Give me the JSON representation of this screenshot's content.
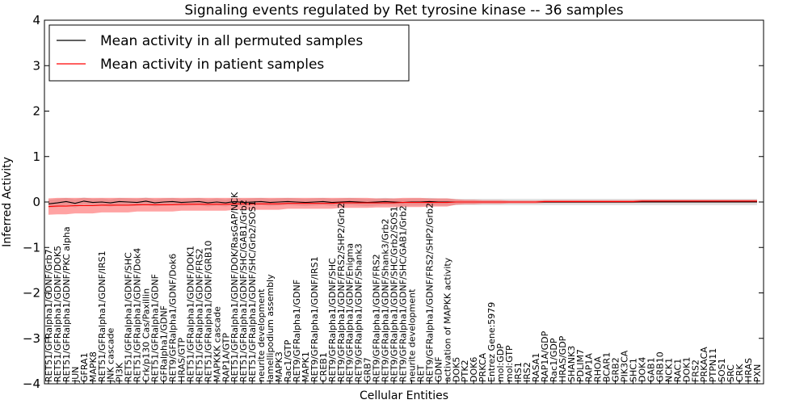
{
  "chart_data": {
    "type": "line",
    "title": "Signaling events regulated by Ret tyrosine kinase -- 36 samples",
    "xlabel": "Cellular Entities",
    "ylabel": "Inferred Activity",
    "ylim": [
      -4,
      4
    ],
    "yticks": [
      "−4",
      "−3",
      "−2",
      "−1",
      "0",
      "1",
      "2",
      "3",
      "4"
    ],
    "ytick_values": [
      -4,
      -3,
      -2,
      -1,
      0,
      1,
      2,
      3,
      4
    ],
    "grid": false,
    "legend": {
      "position": "top-left",
      "entries": [
        {
          "label": "Mean activity in all permuted samples",
          "color": "#000000"
        },
        {
          "label": "Mean activity in patient samples",
          "color": "#ff0000"
        }
      ]
    },
    "colors": {
      "permuted_line": "#000000",
      "patient_line": "#ff0000",
      "patient_band": "#ff3333",
      "permuted_band": "#bbbbbb"
    },
    "categories": [
      "RET51/GFRalpha1/GDNF/Grb7",
      "RET51/GFRalpha1/GDNF/DOK5",
      "RET51/GFRalpha1/GDNF/PKC alpha",
      "JUN",
      "GFRA1",
      "MAPK8",
      "RET51/GFRalpha1/GDNF/IRS1",
      "JNK cascade",
      "PI3K",
      "RET51/GFRalpha1/GDNF/SHC",
      "RET51/GFRalpha1/GDNF/Dok4",
      "Crk/p130 Cas/Paxillin",
      "RET51/GFRalpha1/GDNF",
      "GFRalpha1/GDNF",
      "RET9/GFRalpha1/GDNF/Dok6",
      "HRAS/GTP",
      "RET51/GFRalpha1/GDNF/DOK1",
      "RET51/GFRalpha1/GDNF/FRS2",
      "RET51/GFRalpha1/GDNF/GRB10",
      "MAPKKK cascade",
      "RAP1A/GTP",
      "RET51/GFRalpha1/GDNF/DOK/RasGAP/NCK",
      "RET51/GFRalpha1/GDNF/SHC/GAB1/Grb2",
      "RET51/GFRalpha1/GDNF/SHC/Grb2/SOS1",
      "neurite development",
      "lamellipodium assembly",
      "MAPK3",
      "Rac1/GTP",
      "RET9/GFRalpha1/GDNF",
      "MAPK1",
      "RET9/GFRalpha1/GDNF/IRS1",
      "CREB1",
      "RET9/GFRalpha1/GDNF/SHC",
      "RET9/GFRalpha1/GDNF/FRS2/SHP2/Grb2",
      "RET9/GFRalpha1/GDNF/Enigma",
      "RET9/GFRalpha1/GDNF/Shank3",
      "GRB7",
      "RET9/GFRalpha1/GDNF/FRS2",
      "RET9/GFRalpha1/GDNF/Shank3/Grb2",
      "RET9/GFRalpha1/GDNF/SHC/Grb2/SOS1",
      "RET9/GFRalpha1/GDNF/SHC/GAB1/Grb2",
      "neurite development",
      "RET",
      "RET9/GFRalpha1/GDNF/FRS2/SHP2/Grb2",
      "GDNF",
      "activation of MAPKK activity",
      "DOK5",
      "PTK2",
      "DOK6",
      "PRKCA",
      "Entrez Gene:5979",
      "mol:GDP",
      "mol:GTP",
      "IRS1",
      "IRS2",
      "RASA1",
      "RAP1A/GDP",
      "Rac1/GDP",
      "HRAS/GDP",
      "SHANK3",
      "PDLIM7",
      "RAP1A",
      "RHOA",
      "BCAR1",
      "GRB2",
      "PIK3CA",
      "SHC1",
      "DOK4",
      "GAB1",
      "GRB10",
      "NCK1",
      "RAC1",
      "DOK1",
      "FRS2",
      "PRKACA",
      "PTPN11",
      "SOS1",
      "SRC",
      "CRK",
      "HRAS",
      "PXN"
    ],
    "series": [
      {
        "name": "Mean activity in all permuted samples",
        "values": [
          -0.04,
          -0.02,
          0.01,
          -0.03,
          0.02,
          -0.01,
          0.0,
          -0.02,
          0.01,
          0.0,
          -0.01,
          0.02,
          -0.02,
          0.0,
          0.01,
          -0.01,
          0.0,
          0.01,
          -0.02,
          0.0,
          -0.02,
          0.01,
          -0.01,
          0.0,
          0.01,
          -0.01,
          0.0,
          0.01,
          0.0,
          -0.01,
          0.0,
          0.01,
          -0.01,
          0.0,
          0.01,
          0.0,
          -0.01,
          0.0,
          0.01,
          0.0,
          -0.01,
          0.0,
          0.0,
          0.01,
          0.0,
          0.0,
          0.0,
          0.0,
          0.0,
          0.0,
          0.0,
          0.0,
          0.0,
          0.0,
          0.0,
          0.0,
          0.0,
          0.0,
          0.0,
          0.0,
          0.0,
          0.0,
          0.0,
          0.0,
          0.0,
          0.0,
          0.0,
          0.0,
          0.0,
          0.0,
          0.0,
          0.0,
          0.0,
          0.0,
          0.0,
          0.0,
          0.0,
          0.0,
          0.0,
          0.0,
          0.0
        ],
        "band": [
          0.09,
          0.09,
          0.08,
          0.09,
          0.08,
          0.08,
          0.08,
          0.08,
          0.08,
          0.08,
          0.08,
          0.08,
          0.08,
          0.08,
          0.08,
          0.08,
          0.08,
          0.08,
          0.08,
          0.08,
          0.08,
          0.08,
          0.08,
          0.08,
          0.08,
          0.08,
          0.08,
          0.08,
          0.08,
          0.08,
          0.08,
          0.08,
          0.08,
          0.08,
          0.08,
          0.08,
          0.08,
          0.08,
          0.08,
          0.08,
          0.08,
          0.08,
          0.08,
          0.08,
          0.08,
          0.08,
          0.07,
          0.07,
          0.07,
          0.07,
          0.07,
          0.07,
          0.07,
          0.07,
          0.07,
          0.07,
          0.07,
          0.07,
          0.07,
          0.07,
          0.07,
          0.07,
          0.07,
          0.07,
          0.07,
          0.07,
          0.07,
          0.07,
          0.07,
          0.07,
          0.07,
          0.07,
          0.07,
          0.07,
          0.07,
          0.07,
          0.07,
          0.07,
          0.07,
          0.07,
          0.07
        ]
      },
      {
        "name": "Mean activity in patient samples",
        "values": [
          -0.1,
          -0.09,
          -0.09,
          -0.08,
          -0.08,
          -0.08,
          -0.07,
          -0.07,
          -0.07,
          -0.07,
          -0.06,
          -0.06,
          -0.06,
          -0.06,
          -0.06,
          -0.05,
          -0.05,
          -0.05,
          -0.05,
          -0.05,
          -0.05,
          -0.04,
          -0.04,
          -0.04,
          -0.04,
          -0.04,
          -0.04,
          -0.03,
          -0.03,
          -0.03,
          -0.03,
          -0.03,
          -0.03,
          -0.02,
          -0.02,
          -0.02,
          -0.02,
          -0.02,
          -0.02,
          -0.02,
          -0.01,
          -0.01,
          -0.01,
          -0.01,
          -0.01,
          -0.01,
          0.0,
          0.0,
          0.0,
          0.0,
          0.0,
          0.0,
          0.0,
          0.0,
          0.0,
          0.0,
          0.01,
          0.01,
          0.01,
          0.01,
          0.01,
          0.01,
          0.01,
          0.01,
          0.01,
          0.01,
          0.01,
          0.02,
          0.02,
          0.02,
          0.02,
          0.02,
          0.02,
          0.02,
          0.02,
          0.02,
          0.02,
          0.02,
          0.02,
          0.02,
          0.02
        ],
        "band": [
          0.18,
          0.18,
          0.18,
          0.17,
          0.17,
          0.17,
          0.16,
          0.16,
          0.16,
          0.16,
          0.15,
          0.15,
          0.15,
          0.15,
          0.15,
          0.14,
          0.14,
          0.14,
          0.14,
          0.14,
          0.14,
          0.13,
          0.13,
          0.13,
          0.13,
          0.13,
          0.13,
          0.12,
          0.12,
          0.12,
          0.12,
          0.12,
          0.12,
          0.11,
          0.11,
          0.11,
          0.11,
          0.1,
          0.1,
          0.1,
          0.1,
          0.1,
          0.1,
          0.09,
          0.09,
          0.09,
          0.06,
          0.05,
          0.05,
          0.04,
          0.04,
          0.04,
          0.03,
          0.03,
          0.03,
          0.03,
          0.03,
          0.03,
          0.03,
          0.03,
          0.03,
          0.03,
          0.03,
          0.03,
          0.03,
          0.03,
          0.03,
          0.03,
          0.03,
          0.03,
          0.03,
          0.03,
          0.03,
          0.03,
          0.03,
          0.03,
          0.03,
          0.03,
          0.03,
          0.03,
          0.03
        ]
      }
    ]
  }
}
